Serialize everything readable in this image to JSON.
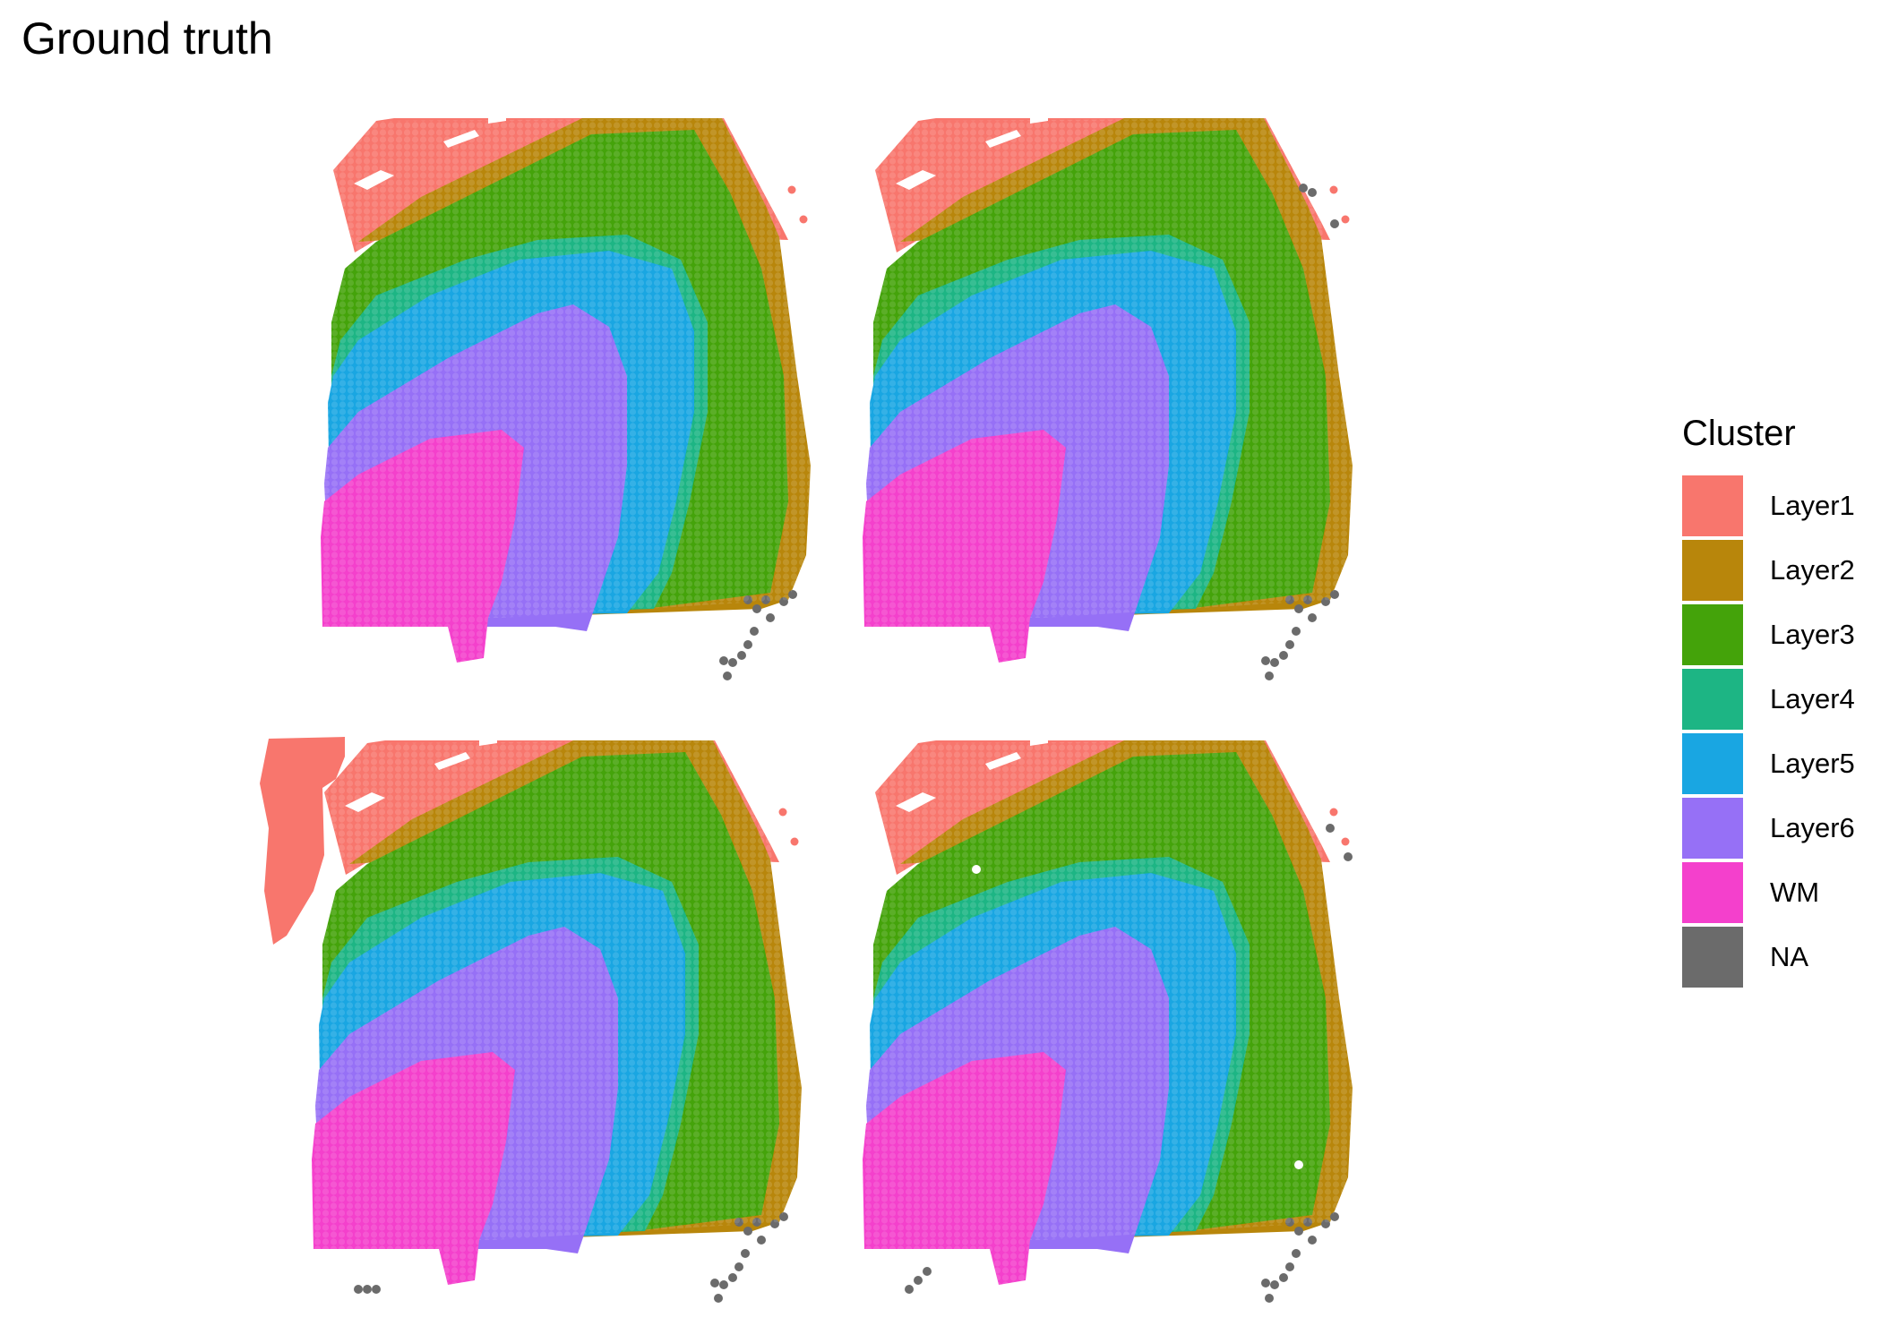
{
  "title": "Ground truth",
  "legend": {
    "title": "Cluster",
    "items": [
      {
        "label": "Layer1",
        "color": "#F8766D"
      },
      {
        "label": "Layer2",
        "color": "#B8860B"
      },
      {
        "label": "Layer3",
        "color": "#44A30A"
      },
      {
        "label": "Layer4",
        "color": "#1DB584"
      },
      {
        "label": "Layer5",
        "color": "#19A6E2"
      },
      {
        "label": "Layer6",
        "color": "#9670F6"
      },
      {
        "label": "WM",
        "color": "#F440CC"
      },
      {
        "label": "NA",
        "color": "#6B6B6B"
      }
    ]
  },
  "chart_data": {
    "type": "scatter",
    "title": "Ground truth",
    "facets": 4,
    "legend_title": "Cluster",
    "legend_position": "right",
    "categories": [
      "Layer1",
      "Layer2",
      "Layer3",
      "Layer4",
      "Layer5",
      "Layer6",
      "WM",
      "NA"
    ],
    "grid": false,
    "axes": false
  }
}
